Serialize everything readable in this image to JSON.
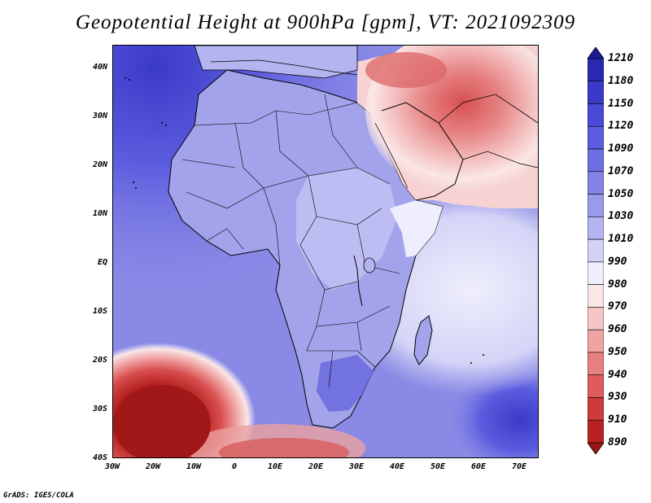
{
  "title": "Geopotential Height at 900hPa [gpm], VT: 2021092309",
  "footer": "GrADS: IGES/COLA",
  "lat_labels": [
    "40N",
    "30N",
    "20N",
    "10N",
    "EQ",
    "10S",
    "20S",
    "30S",
    "40S"
  ],
  "lon_labels": [
    "30W",
    "20W",
    "10W",
    "0",
    "10E",
    "20E",
    "30E",
    "40E",
    "50E",
    "60E",
    "70E"
  ],
  "colorbar": {
    "levels": [
      1210,
      1180,
      1150,
      1120,
      1090,
      1070,
      1050,
      1030,
      1010,
      990,
      980,
      970,
      960,
      950,
      940,
      930,
      910,
      890
    ],
    "colors_top_to_bottom": [
      "#1c1c99",
      "#2828b0",
      "#3a3ac8",
      "#4a4ad8",
      "#5c5cdf",
      "#6e6ee3",
      "#8484e8",
      "#9a9aec",
      "#b4b4f1",
      "#d2d2f7",
      "#eeeefc",
      "#fbe6e6",
      "#f6c6c6",
      "#f0a3a3",
      "#e88080",
      "#de5c5c",
      "#cf3b3b",
      "#b82222",
      "#9c1515"
    ]
  },
  "map": {
    "domain": {
      "lon_min": -30,
      "lon_max": 75,
      "lat_min": -40,
      "lat_max": 45
    },
    "ocean_color": "#8a8ae6",
    "land_color": "#a3a3ec",
    "low_center_color": "#a01818",
    "high_center_color": "#3a3ac8"
  }
}
